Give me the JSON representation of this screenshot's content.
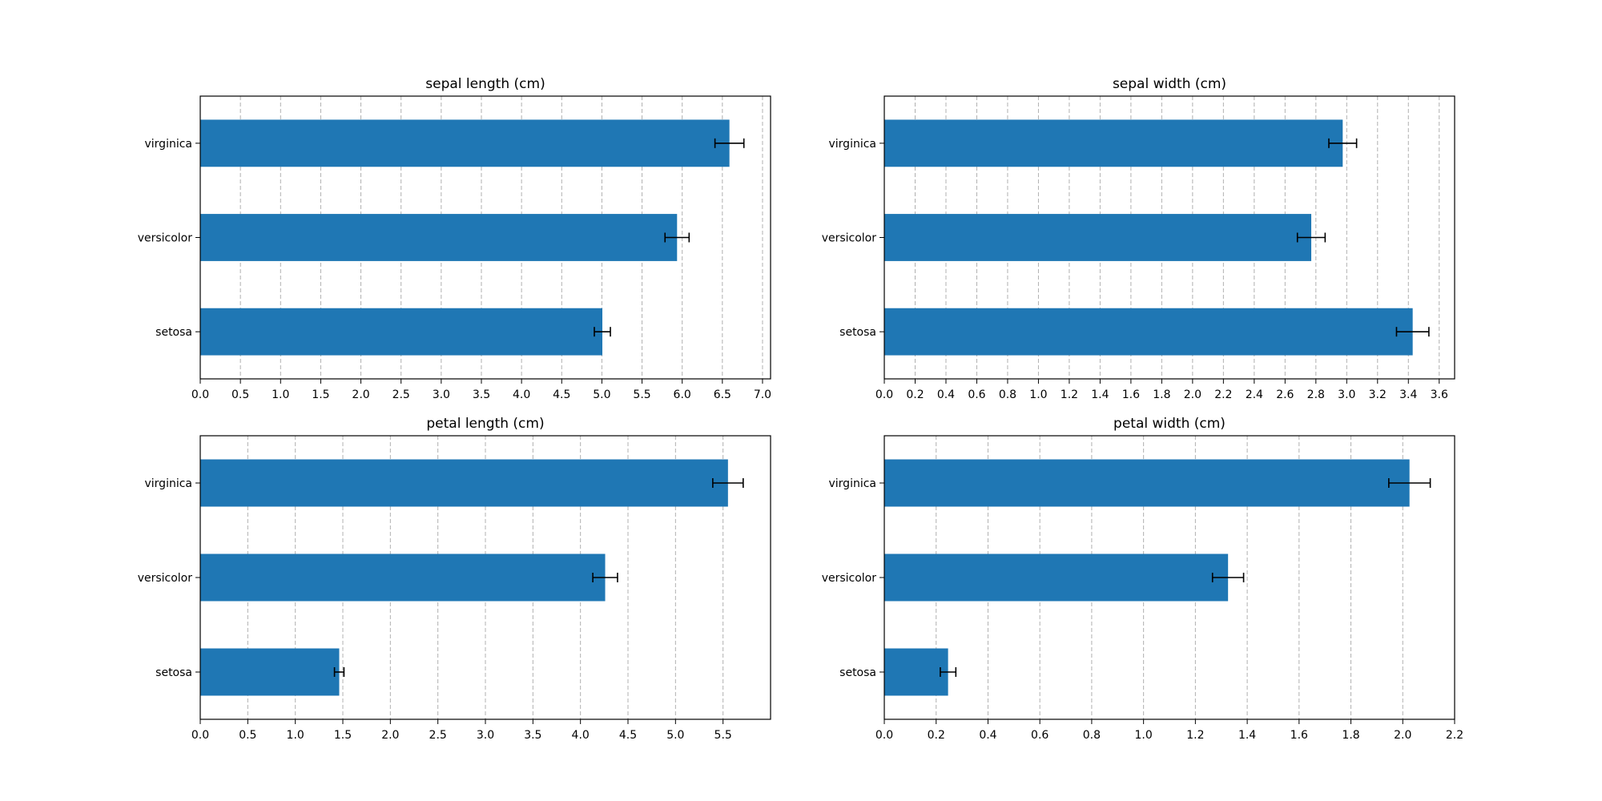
{
  "chart_data": [
    {
      "type": "bar",
      "orientation": "horizontal",
      "title": "sepal length (cm)",
      "categories": [
        "setosa",
        "versicolor",
        "virginica"
      ],
      "values": [
        5.006,
        5.936,
        6.588
      ],
      "error": [
        0.1,
        0.15,
        0.18
      ],
      "xlim": [
        0,
        7.1
      ],
      "xticks": [
        "0.0",
        "0.5",
        "1.0",
        "1.5",
        "2.0",
        "2.5",
        "3.0",
        "3.5",
        "4.0",
        "4.5",
        "5.0",
        "5.5",
        "6.0",
        "6.5",
        "7.0"
      ],
      "grid": "x",
      "color": "#1f77b4",
      "error_color": "#000000"
    },
    {
      "type": "bar",
      "orientation": "horizontal",
      "title": "sepal width (cm)",
      "categories": [
        "setosa",
        "versicolor",
        "virginica"
      ],
      "values": [
        3.428,
        2.77,
        2.974
      ],
      "error": [
        0.105,
        0.09,
        0.09
      ],
      "xlim": [
        0,
        3.7
      ],
      "xticks": [
        "0.0",
        "0.2",
        "0.4",
        "0.6",
        "0.8",
        "1.0",
        "1.2",
        "1.4",
        "1.6",
        "1.8",
        "2.0",
        "2.2",
        "2.4",
        "2.6",
        "2.8",
        "3.0",
        "3.2",
        "3.4",
        "3.6"
      ],
      "grid": "x",
      "color": "#1f77b4",
      "error_color": "#000000"
    },
    {
      "type": "bar",
      "orientation": "horizontal",
      "title": "petal length (cm)",
      "categories": [
        "setosa",
        "versicolor",
        "virginica"
      ],
      "values": [
        1.462,
        4.26,
        5.552
      ],
      "error": [
        0.05,
        0.13,
        0.16
      ],
      "xlim": [
        0,
        6.0
      ],
      "xticks": [
        "0.0",
        "0.5",
        "1.0",
        "1.5",
        "2.0",
        "2.5",
        "3.0",
        "3.5",
        "4.0",
        "4.5",
        "5.0",
        "5.5"
      ],
      "grid": "x",
      "color": "#1f77b4",
      "error_color": "#000000"
    },
    {
      "type": "bar",
      "orientation": "horizontal",
      "title": "petal width (cm)",
      "categories": [
        "setosa",
        "versicolor",
        "virginica"
      ],
      "values": [
        0.246,
        1.326,
        2.026
      ],
      "error": [
        0.03,
        0.06,
        0.08
      ],
      "xlim": [
        0,
        2.2
      ],
      "xticks": [
        "0.0",
        "0.2",
        "0.4",
        "0.6",
        "0.8",
        "1.0",
        "1.2",
        "1.4",
        "1.6",
        "1.8",
        "2.0",
        "2.2"
      ],
      "grid": "x",
      "color": "#1f77b4",
      "error_color": "#000000"
    }
  ]
}
